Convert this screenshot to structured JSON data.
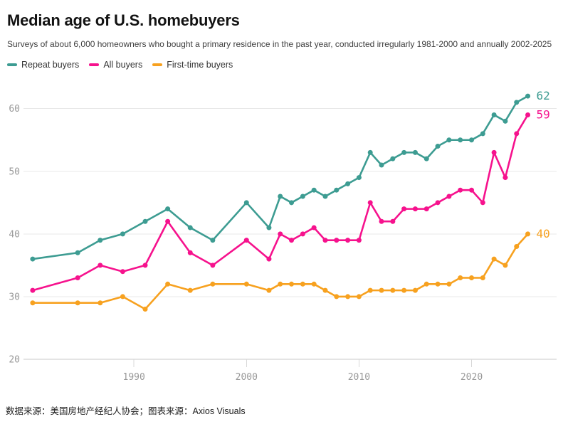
{
  "header": {
    "title": "Median age of U.S. homebuyers",
    "subtitle": "Surveys of about 6,000 homeowners who bought a primary residence in the past year, conducted irregularly 1981-2000 and annually 2002-2025"
  },
  "chart_data": {
    "type": "line",
    "title": "Median age of U.S. homebuyers",
    "x": [
      1981,
      1985,
      1987,
      1989,
      1991,
      1993,
      1995,
      1997,
      2000,
      2002,
      2003,
      2004,
      2005,
      2006,
      2007,
      2008,
      2009,
      2010,
      2011,
      2012,
      2013,
      2014,
      2015,
      2016,
      2017,
      2018,
      2019,
      2020,
      2021,
      2022,
      2023,
      2024,
      2025
    ],
    "series": [
      {
        "name": "Repeat buyers",
        "color": "#3d9c92",
        "end_label": "62",
        "values": [
          36,
          37,
          39,
          40,
          42,
          44,
          41,
          39,
          45,
          41,
          46,
          45,
          46,
          47,
          46,
          47,
          48,
          49,
          53,
          51,
          52,
          53,
          53,
          52,
          54,
          55,
          55,
          55,
          56,
          59,
          58,
          61,
          62
        ]
      },
      {
        "name": "All buyers",
        "color": "#f6128d",
        "end_label": "59",
        "values": [
          31,
          33,
          35,
          34,
          35,
          42,
          37,
          35,
          39,
          36,
          40,
          39,
          40,
          41,
          39,
          39,
          39,
          39,
          45,
          42,
          42,
          44,
          44,
          44,
          45,
          46,
          47,
          47,
          45,
          53,
          49,
          56,
          59
        ]
      },
      {
        "name": "First-time buyers",
        "color": "#f7a11f",
        "end_label": "40",
        "values": [
          29,
          29,
          29,
          30,
          28,
          32,
          31,
          32,
          32,
          31,
          32,
          32,
          32,
          32,
          31,
          30,
          30,
          30,
          31,
          31,
          31,
          31,
          31,
          32,
          32,
          32,
          33,
          33,
          33,
          36,
          35,
          38,
          40
        ]
      }
    ],
    "yticks": [
      20,
      30,
      40,
      50,
      60
    ],
    "xticks": [
      1990,
      2000,
      2010,
      2020
    ],
    "ylim": [
      20,
      65
    ],
    "xlim": [
      1981,
      2025
    ],
    "grid": "horizontal",
    "legend_position": "top",
    "colors": {
      "gridline": "#e8e8e8",
      "baseline": "#c9c9c9",
      "tick": "#d8d8d8",
      "axis_text": "#999999"
    }
  },
  "footer": {
    "source": "数据来源：美国房地产经纪人协会；图表来源：Axios Visuals"
  }
}
